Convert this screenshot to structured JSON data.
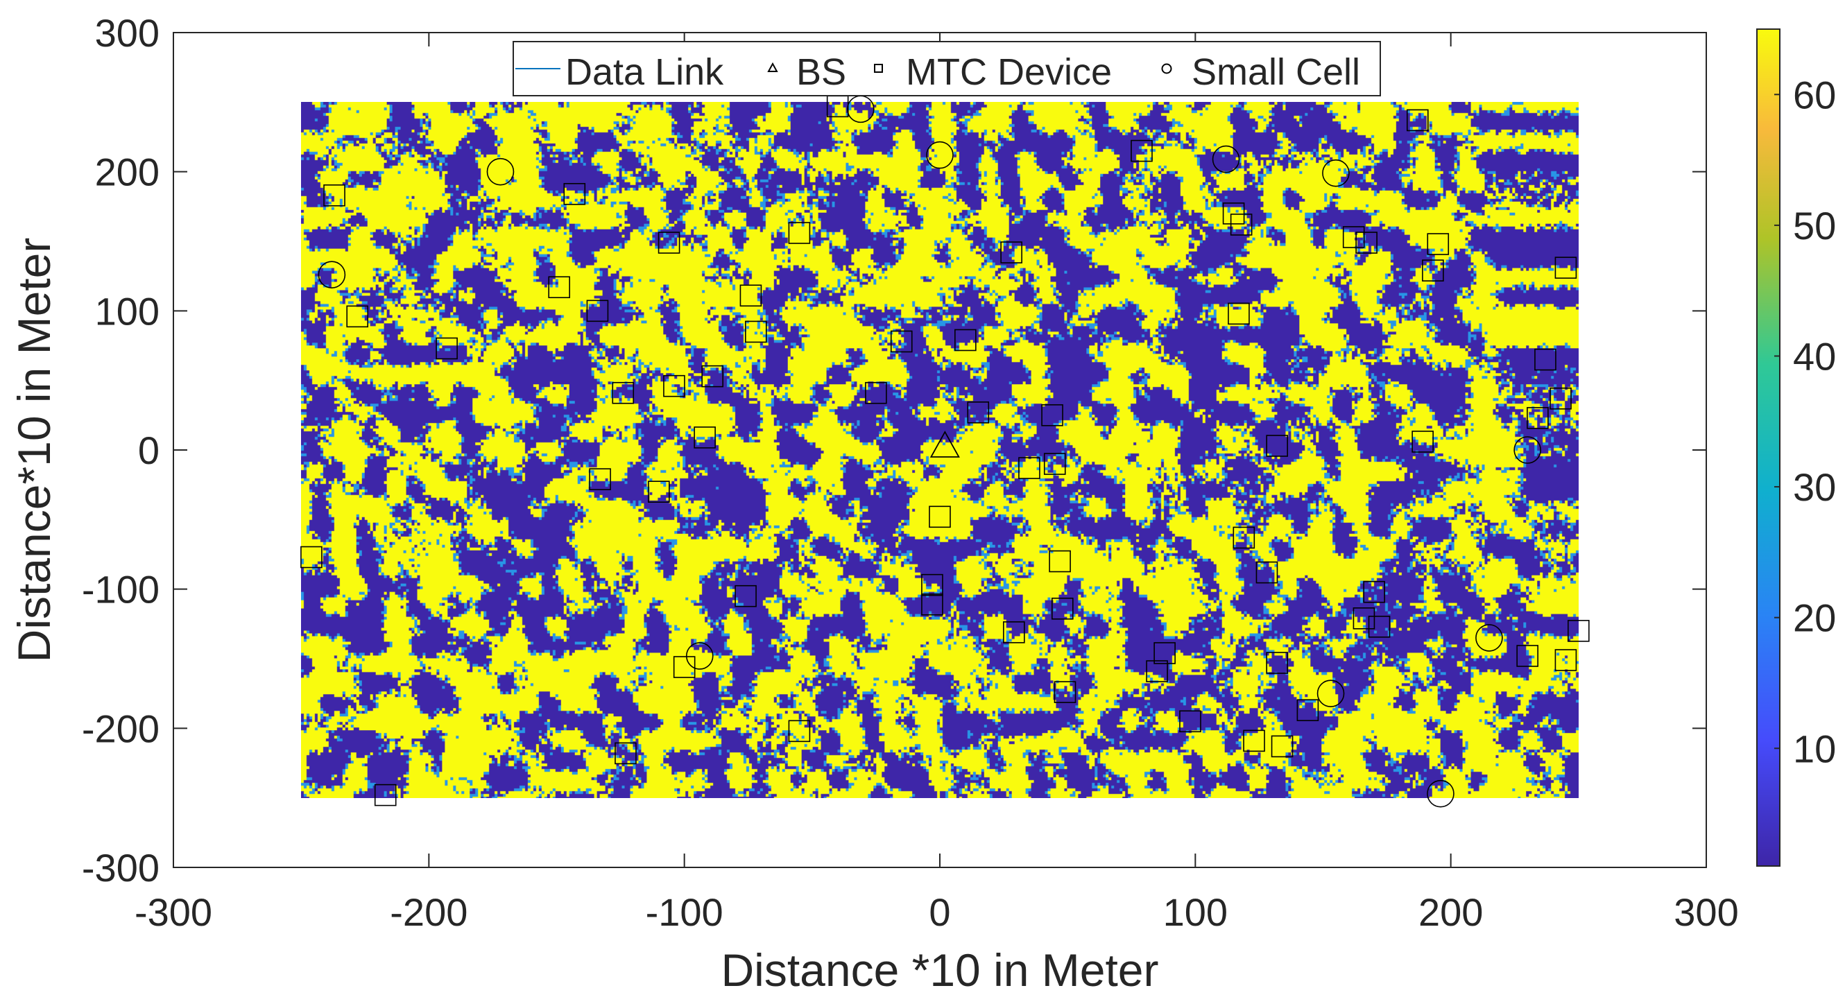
{
  "chart_data": {
    "type": "heatmap",
    "title": "",
    "xlabel": "Distance *10 in Meter",
    "ylabel": "Distance*10 in Meter",
    "xlim": [
      -300,
      300
    ],
    "ylim": [
      -300,
      300
    ],
    "xticks": [
      -300,
      -200,
      -100,
      0,
      100,
      200,
      300
    ],
    "yticks": [
      -300,
      -200,
      -100,
      0,
      100,
      200,
      300
    ],
    "heatmap_extent": {
      "x": [
        -250,
        250
      ],
      "y": [
        -250,
        250
      ]
    },
    "colorbar": {
      "colormap": "parula",
      "range": [
        1,
        65
      ],
      "ticks": [
        10,
        20,
        30,
        40,
        50,
        60
      ]
    },
    "legend": {
      "placement": "top-center",
      "entries": [
        {
          "label": "Data Link",
          "marker": "line"
        },
        {
          "label": "BS",
          "marker": "triangle"
        },
        {
          "label": "MTC Device",
          "marker": "square"
        },
        {
          "label": "Small Cell",
          "marker": "circle"
        }
      ]
    },
    "bs": [
      {
        "x": 2,
        "y": 2
      }
    ],
    "small_cells": [
      {
        "x": -238,
        "y": 126
      },
      {
        "x": -172,
        "y": 200
      },
      {
        "x": -31,
        "y": 245
      },
      {
        "x": 0,
        "y": 212
      },
      {
        "x": 112,
        "y": 209
      },
      {
        "x": 155,
        "y": 199
      },
      {
        "x": 230,
        "y": 0
      },
      {
        "x": -94,
        "y": -148
      },
      {
        "x": 153,
        "y": -175
      },
      {
        "x": 196,
        "y": -247
      },
      {
        "x": 215,
        "y": -135
      }
    ],
    "mtc_devices": [
      {
        "x": -237,
        "y": 183
      },
      {
        "x": -228,
        "y": 96
      },
      {
        "x": -193,
        "y": 73
      },
      {
        "x": -246,
        "y": -77
      },
      {
        "x": -217,
        "y": -248
      },
      {
        "x": -143,
        "y": 184
      },
      {
        "x": -149,
        "y": 117
      },
      {
        "x": -134,
        "y": 100
      },
      {
        "x": -124,
        "y": 41
      },
      {
        "x": -106,
        "y": 149
      },
      {
        "x": -104,
        "y": 46
      },
      {
        "x": -89,
        "y": 53
      },
      {
        "x": -92,
        "y": 9
      },
      {
        "x": -133,
        "y": -21
      },
      {
        "x": -110,
        "y": -30
      },
      {
        "x": -123,
        "y": -218
      },
      {
        "x": -100,
        "y": -156
      },
      {
        "x": -74,
        "y": 111
      },
      {
        "x": -72,
        "y": 85
      },
      {
        "x": -55,
        "y": 156
      },
      {
        "x": -76,
        "y": -105
      },
      {
        "x": -55,
        "y": -202
      },
      {
        "x": -40,
        "y": 247
      },
      {
        "x": -25,
        "y": 41
      },
      {
        "x": -15,
        "y": 78
      },
      {
        "x": 10,
        "y": 79
      },
      {
        "x": 15,
        "y": 27
      },
      {
        "x": 0,
        "y": -48
      },
      {
        "x": -3,
        "y": -97
      },
      {
        "x": -3,
        "y": -111
      },
      {
        "x": 28,
        "y": 142
      },
      {
        "x": 29,
        "y": -131
      },
      {
        "x": 35,
        "y": -13
      },
      {
        "x": 45,
        "y": -10
      },
      {
        "x": 44,
        "y": 25
      },
      {
        "x": 47,
        "y": -80
      },
      {
        "x": 48,
        "y": -114
      },
      {
        "x": 49,
        "y": -174
      },
      {
        "x": 79,
        "y": 215
      },
      {
        "x": 85,
        "y": -159
      },
      {
        "x": 88,
        "y": -146
      },
      {
        "x": 98,
        "y": -195
      },
      {
        "x": 115,
        "y": 170
      },
      {
        "x": 118,
        "y": 162
      },
      {
        "x": 117,
        "y": 98
      },
      {
        "x": 119,
        "y": -63
      },
      {
        "x": 123,
        "y": -209
      },
      {
        "x": 128,
        "y": -88
      },
      {
        "x": 132,
        "y": 3
      },
      {
        "x": 132,
        "y": -153
      },
      {
        "x": 134,
        "y": -213
      },
      {
        "x": 144,
        "y": -187
      },
      {
        "x": 162,
        "y": 153
      },
      {
        "x": 167,
        "y": 149
      },
      {
        "x": 166,
        "y": -121
      },
      {
        "x": 170,
        "y": -102
      },
      {
        "x": 172,
        "y": -127
      },
      {
        "x": 187,
        "y": 237
      },
      {
        "x": 189,
        "y": 6
      },
      {
        "x": 193,
        "y": 129
      },
      {
        "x": 195,
        "y": 148
      },
      {
        "x": 230,
        "y": -148
      },
      {
        "x": 234,
        "y": 23
      },
      {
        "x": 237,
        "y": 65
      },
      {
        "x": 243,
        "y": 37
      },
      {
        "x": 245,
        "y": 131
      },
      {
        "x": 245,
        "y": -151
      },
      {
        "x": 250,
        "y": -130
      }
    ]
  },
  "colors": {
    "low": "#3e26a8",
    "high": "#f9fb0e",
    "axis": "#262626",
    "marker": "#000000",
    "data_link": "#0072bd"
  }
}
